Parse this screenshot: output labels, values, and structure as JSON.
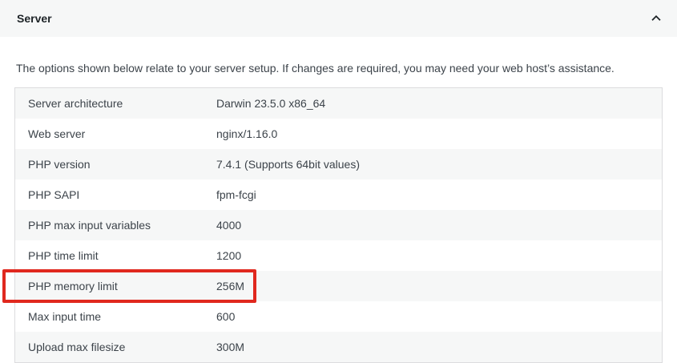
{
  "accordion": {
    "title": "Server",
    "chevron_icon": "chevron-up"
  },
  "description": "The options shown below relate to your server setup. If changes are required, you may need your web host’s assistance.",
  "server_table": {
    "rows": [
      {
        "label": "Server architecture",
        "value": "Darwin 23.5.0 x86_64",
        "highlighted": false
      },
      {
        "label": "Web server",
        "value": "nginx/1.16.0",
        "highlighted": false
      },
      {
        "label": "PHP version",
        "value": "7.4.1 (Supports 64bit values)",
        "highlighted": false
      },
      {
        "label": "PHP SAPI",
        "value": "fpm-fcgi",
        "highlighted": false
      },
      {
        "label": "PHP max input variables",
        "value": "4000",
        "highlighted": false
      },
      {
        "label": "PHP time limit",
        "value": "1200",
        "highlighted": false
      },
      {
        "label": "PHP memory limit",
        "value": "256M",
        "highlighted": true
      },
      {
        "label": "Max input time",
        "value": "600",
        "highlighted": false
      },
      {
        "label": "Upload max filesize",
        "value": "300M",
        "highlighted": false
      }
    ]
  },
  "colors": {
    "highlight_border": "#e0281e",
    "header_bg": "#f6f7f7",
    "row_alt_bg": "#f6f7f7",
    "heading_text": "#1d2327",
    "body_text": "#3c434a",
    "table_border": "#dcdcde"
  }
}
